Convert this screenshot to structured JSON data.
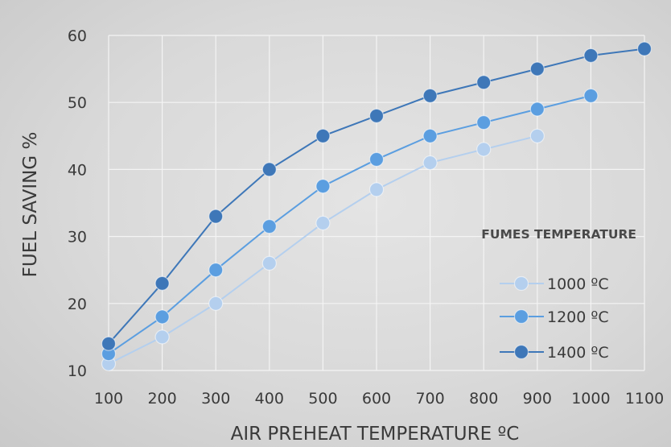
{
  "chart_data": {
    "type": "line",
    "xlabel": "AIR PREHEAT TEMPERATURE ºC",
    "ylabel": "FUEL SAVING %",
    "xlim": [
      100,
      1100
    ],
    "ylim": [
      10,
      60
    ],
    "x_ticks": [
      100,
      200,
      300,
      400,
      500,
      600,
      700,
      800,
      900,
      1000,
      1100
    ],
    "y_ticks": [
      10,
      20,
      30,
      40,
      50,
      60
    ],
    "grid": true,
    "legend_title": "FUMES TEMPERATURE",
    "legend_position": "bottom-right",
    "series": [
      {
        "name": "1000 ºC",
        "color": "#b4cfee",
        "x": [
          100,
          200,
          300,
          400,
          500,
          600,
          700,
          800,
          900
        ],
        "y": [
          11,
          15,
          20,
          26,
          32,
          37,
          41,
          43,
          45
        ]
      },
      {
        "name": "1200 ºC",
        "color": "#5b9ee0",
        "x": [
          100,
          200,
          300,
          400,
          500,
          600,
          700,
          800,
          900,
          1000
        ],
        "y": [
          12.5,
          18,
          25,
          31.5,
          37.5,
          41.5,
          45,
          47,
          49,
          51
        ]
      },
      {
        "name": "1400 ºC",
        "color": "#3e77b8",
        "x": [
          100,
          200,
          300,
          400,
          500,
          600,
          700,
          800,
          900,
          1000,
          1100
        ],
        "y": [
          14,
          23,
          33,
          40,
          45,
          48,
          51,
          53,
          55,
          57,
          58
        ]
      }
    ]
  }
}
